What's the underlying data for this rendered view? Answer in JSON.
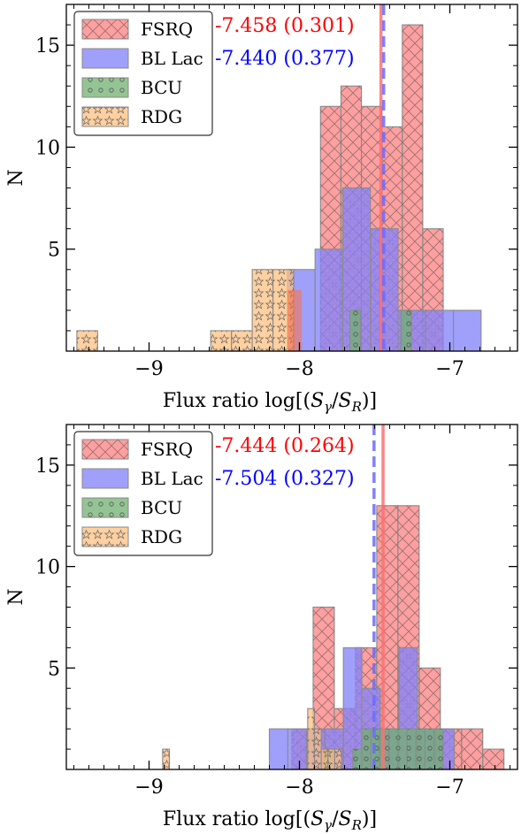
{
  "chart_data": [
    {
      "type": "bar",
      "xlabel": "Flux ratio log[(S_γ/S_R)]",
      "ylabel": "N",
      "xlim": [
        -9.55,
        -6.55
      ],
      "ylim": [
        0,
        17
      ],
      "xticks": [
        -9,
        -8,
        -7
      ],
      "yticks": [
        5,
        10,
        15
      ],
      "legend": {
        "placement": "top-left",
        "entries": [
          "FSRQ",
          "BL Lac",
          "BCU",
          "RDG"
        ]
      },
      "annotations": [
        {
          "text": "-7.458 (0.301)",
          "color": "#ff0000"
        },
        {
          "text": "-7.440 (0.377)",
          "color": "#0000ff"
        }
      ],
      "medians": [
        {
          "series": "FSRQ",
          "value": -7.458,
          "color": "#ff7070",
          "style": "solid"
        },
        {
          "series": "BL Lac",
          "value": -7.44,
          "color": "#6b6bff",
          "style": "dashed"
        }
      ],
      "series": [
        {
          "name": "FSRQ",
          "color": "#ff7f7f",
          "pattern": "cross",
          "bin_width": 0.136,
          "bins": [
            [
              -7.86,
              12
            ],
            [
              -7.724,
              13
            ],
            [
              -7.588,
              12
            ],
            [
              -7.452,
              11
            ],
            [
              -7.316,
              16
            ],
            [
              -7.18,
              6
            ]
          ]
        },
        {
          "name": "BL Lac",
          "color": "#7f7fff",
          "pattern": "dots",
          "bin_width": 0.184,
          "bins": [
            [
              -8.08,
              4
            ],
            [
              -7.896,
              5
            ],
            [
              -7.712,
              8
            ],
            [
              -7.528,
              6
            ],
            [
              -7.344,
              2
            ],
            [
              -7.16,
              2
            ],
            [
              -6.976,
              2
            ]
          ]
        },
        {
          "name": "BCU",
          "color": "#70b070",
          "pattern": "circles",
          "bin_width": 0.07,
          "bins": [
            [
              -7.665,
              2
            ],
            [
              -7.325,
              2
            ]
          ]
        },
        {
          "name": "RDG",
          "color": "#ffc080",
          "pattern": "stars",
          "bin_width": 0.138,
          "bins": [
            [
              -9.48,
              1
            ],
            [
              -8.59,
              1
            ],
            [
              -8.452,
              1
            ],
            [
              -8.314,
              4
            ],
            [
              -8.176,
              4
            ]
          ]
        }
      ],
      "extra_overlaps": [
        {
          "x0": -8.08,
          "w": 0.095,
          "h": 3,
          "color": "#ff7040"
        }
      ]
    },
    {
      "type": "bar",
      "xlabel": "Flux ratio log[(S_γ/S_R)]",
      "ylabel": "N",
      "xlim": [
        -9.55,
        -6.55
      ],
      "ylim": [
        0,
        17
      ],
      "xticks": [
        -9,
        -8,
        -7
      ],
      "yticks": [
        5,
        10,
        15
      ],
      "legend": {
        "placement": "top-left",
        "entries": [
          "FSRQ",
          "BL Lac",
          "BCU",
          "RDG"
        ]
      },
      "annotations": [
        {
          "text": "-7.444 (0.264)",
          "color": "#ff0000"
        },
        {
          "text": "-7.504 (0.327)",
          "color": "#0000ff"
        }
      ],
      "medians": [
        {
          "series": "FSRQ",
          "value": -7.444,
          "color": "#ff7070",
          "style": "solid"
        },
        {
          "series": "BL Lac",
          "value": -7.504,
          "color": "#6b6bff",
          "style": "dashed"
        }
      ],
      "series": [
        {
          "name": "FSRQ",
          "color": "#ff7f7f",
          "pattern": "cross",
          "bin_width": 0.141,
          "bins": [
            [
              -8.05,
              2
            ],
            [
              -7.909,
              8
            ],
            [
              -7.768,
              3
            ],
            [
              -7.627,
              6
            ],
            [
              -7.486,
              13
            ],
            [
              -7.345,
              13
            ],
            [
              -7.204,
              5
            ],
            [
              -7.063,
              2
            ],
            [
              -6.922,
              2
            ],
            [
              -6.781,
              1
            ]
          ]
        },
        {
          "name": "BL Lac",
          "color": "#7f7fff",
          "pattern": "dots",
          "bin_width": 0.123,
          "bins": [
            [
              -8.2,
              2
            ],
            [
              -8.077,
              2
            ],
            [
              -7.954,
              2
            ],
            [
              -7.831,
              2
            ],
            [
              -7.708,
              6
            ],
            [
              -7.585,
              4
            ],
            [
              -7.462,
              2
            ],
            [
              -7.339,
              6
            ],
            [
              -7.216,
              2
            ],
            [
              -7.093,
              2
            ]
          ]
        },
        {
          "name": "BCU",
          "color": "#70b070",
          "pattern": "circles",
          "bin_width": 0.06,
          "bins": [
            [
              -7.84,
              1
            ],
            [
              -7.645,
              1
            ],
            [
              -7.585,
              2
            ],
            [
              -7.525,
              2
            ],
            [
              -7.465,
              2
            ],
            [
              -7.405,
              2
            ],
            [
              -7.345,
              2
            ],
            [
              -7.285,
              2
            ],
            [
              -7.225,
              2
            ],
            [
              -7.165,
              2
            ],
            [
              -7.105,
              2
            ]
          ]
        },
        {
          "name": "RDG",
          "color": "#ffc080",
          "pattern": "stars",
          "bin_width": 0.045,
          "bins": [
            [
              -8.91,
              1
            ],
            [
              -7.945,
              3
            ],
            [
              -7.9,
              2
            ],
            [
              -7.855,
              1
            ],
            [
              -7.81,
              1
            ],
            [
              -7.765,
              1
            ]
          ]
        }
      ],
      "extra_overlaps": []
    }
  ]
}
